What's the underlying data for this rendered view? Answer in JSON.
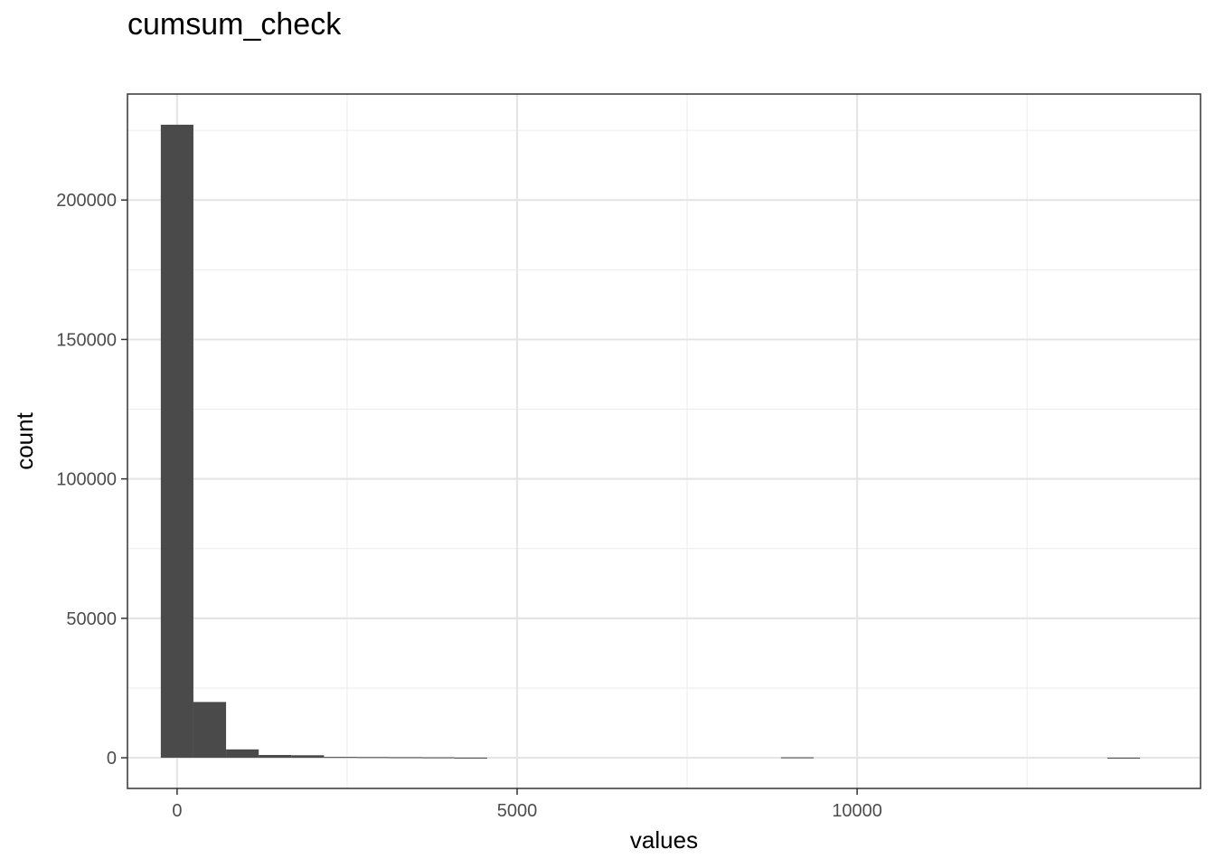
{
  "chart_data": {
    "type": "bar",
    "title": "cumsum_check",
    "xlabel": "values",
    "ylabel": "count",
    "xlim": [
      -730,
      15050
    ],
    "ylim": [
      -11000,
      238000
    ],
    "x_ticks": [
      {
        "value": 0,
        "label": "0"
      },
      {
        "value": 5000,
        "label": "5000"
      },
      {
        "value": 10000,
        "label": "10000"
      }
    ],
    "y_ticks": [
      {
        "value": 0,
        "label": "0"
      },
      {
        "value": 50000,
        "label": "50000"
      },
      {
        "value": 100000,
        "label": "100000"
      },
      {
        "value": 150000,
        "label": "150000"
      },
      {
        "value": 200000,
        "label": "200000"
      }
    ],
    "bin_width": 480,
    "bins": [
      {
        "x0": -240,
        "count": 227000
      },
      {
        "x0": 240,
        "count": 20000
      },
      {
        "x0": 720,
        "count": 3000
      },
      {
        "x0": 1200,
        "count": 1000
      },
      {
        "x0": 1680,
        "count": 900
      },
      {
        "x0": 2160,
        "count": 300
      },
      {
        "x0": 2640,
        "count": 250
      },
      {
        "x0": 3120,
        "count": 200
      },
      {
        "x0": 3600,
        "count": 150
      },
      {
        "x0": 4080,
        "count": 40
      },
      {
        "x0": 8880,
        "count": 150
      },
      {
        "x0": 13680,
        "count": 30
      }
    ],
    "grid": true,
    "bar_color": "#4a4a4a"
  }
}
